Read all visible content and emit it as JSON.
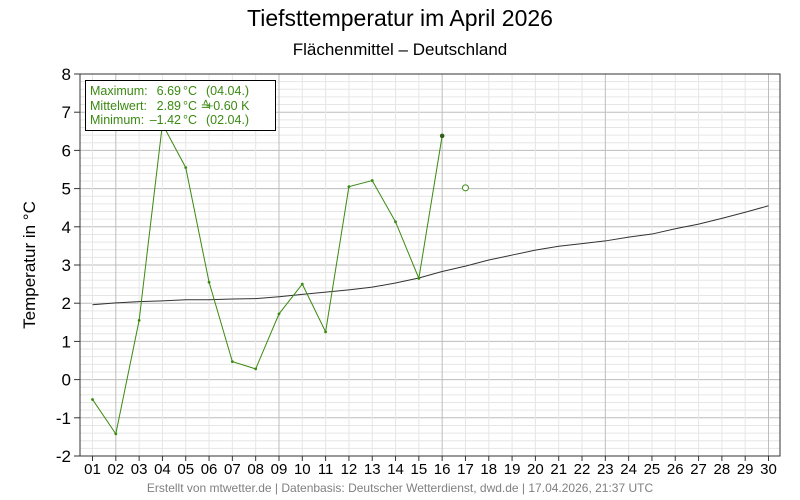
{
  "title": "Tiefsttemperatur im April 2026",
  "subtitle": "Flächenmittel – Deutschland",
  "ylabel": "Temperatur in °C",
  "footer": "Erstellt von mtwetter.de | Datenbasis: Deutscher Wetterdienst, dwd.de | 17.04.2026, 21:37 UTC",
  "stats": {
    "max_label": "Maximum:",
    "max_value": "6.69",
    "max_unit": "°C",
    "max_extra": "(04.04.)",
    "mean_label": "Mittelwert:",
    "mean_value": "2.89",
    "mean_unit": "°C ≙",
    "mean_extra": "+0.60 K",
    "min_label": "Minimum:",
    "min_value": "–1.42",
    "min_unit": "°C",
    "min_extra": "(02.04.)"
  },
  "colors": {
    "series": "#3a8a12",
    "mean": "#333333",
    "grid_major": "#bdbdbd",
    "grid_minor": "#e6e6e6"
  },
  "chart_data": {
    "type": "line",
    "title": "Tiefsttemperatur im April 2026",
    "subtitle": "Flächenmittel – Deutschland",
    "ylabel": "Temperatur in °C",
    "xlabel": "",
    "ylim": [
      -2,
      8
    ],
    "yticks": [
      "-2",
      "-1",
      "0",
      "1",
      "2",
      "3",
      "4",
      "5",
      "6",
      "7",
      "8"
    ],
    "categories": [
      "01",
      "02",
      "03",
      "04",
      "05",
      "06",
      "07",
      "08",
      "09",
      "10",
      "11",
      "12",
      "13",
      "14",
      "15",
      "16",
      "17",
      "18",
      "19",
      "20",
      "21",
      "22",
      "23",
      "24",
      "25",
      "26",
      "27",
      "28",
      "29",
      "30"
    ],
    "grid": true,
    "series": [
      {
        "key": "observed",
        "style": "line-markers",
        "values": [
          -0.52,
          -1.42,
          1.55,
          6.69,
          5.55,
          2.55,
          0.47,
          0.28,
          1.72,
          2.5,
          1.25,
          5.05,
          5.21,
          4.13,
          2.65,
          6.38,
          null,
          null,
          null,
          null,
          null,
          null,
          null,
          null,
          null,
          null,
          null,
          null,
          null,
          null
        ]
      },
      {
        "key": "forecast",
        "style": "open-marker",
        "values": [
          null,
          null,
          null,
          null,
          null,
          null,
          null,
          null,
          null,
          null,
          null,
          null,
          null,
          null,
          null,
          null,
          5.02,
          null,
          null,
          null,
          null,
          null,
          null,
          null,
          null,
          null,
          null,
          null,
          null,
          null
        ]
      },
      {
        "key": "climate_mean",
        "style": "line",
        "values": [
          1.96,
          2.01,
          2.04,
          2.06,
          2.09,
          2.09,
          2.11,
          2.12,
          2.17,
          2.23,
          2.29,
          2.35,
          2.42,
          2.53,
          2.66,
          2.83,
          2.97,
          3.13,
          3.26,
          3.39,
          3.49,
          3.56,
          3.63,
          3.73,
          3.81,
          3.95,
          4.07,
          4.22,
          4.38,
          4.55
        ]
      }
    ]
  }
}
